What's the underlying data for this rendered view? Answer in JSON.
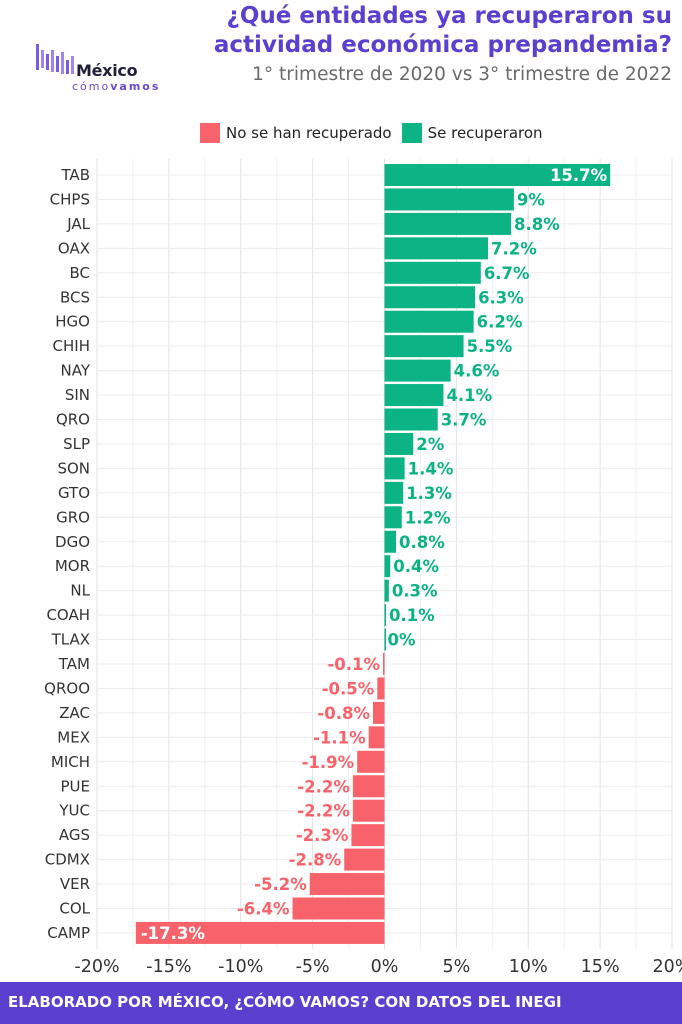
{
  "header": {
    "title_line1": "¿Qué entidades ya recuperaron su",
    "title_line2": "actividad económica prepandemia?",
    "subtitle": "1° trimestre de 2020 vs 3° trimestre de 2022"
  },
  "logo": {
    "name": "México",
    "tag_light": "cómo",
    "tag_bold": "vamos"
  },
  "legend": {
    "negative": {
      "label": "No se han recuperado",
      "color": "#f8636b"
    },
    "positive": {
      "label": "Se recuperaron",
      "color": "#0bb385"
    }
  },
  "footer": {
    "text": "ELABORADO POR MÉXICO, ¿CÓMO VAMOS? CON DATOS DEL INEGI"
  },
  "chart_data": {
    "type": "bar",
    "orientation": "horizontal",
    "title": "¿Qué entidades ya recuperaron su actividad económica prepandemia?",
    "subtitle": "1° trimestre de 2020 vs 3° trimestre de 2022",
    "categories": [
      "TAB",
      "CHPS",
      "JAL",
      "OAX",
      "BC",
      "BCS",
      "HGO",
      "CHIH",
      "NAY",
      "SIN",
      "QRO",
      "SLP",
      "SON",
      "GTO",
      "GRO",
      "DGO",
      "MOR",
      "NL",
      "COAH",
      "TLAX",
      "TAM",
      "QROO",
      "ZAC",
      "MEX",
      "MICH",
      "PUE",
      "YUC",
      "AGS",
      "CDMX",
      "VER",
      "COL",
      "CAMP"
    ],
    "values": [
      15.7,
      9,
      8.8,
      7.2,
      6.7,
      6.3,
      6.2,
      5.5,
      4.6,
      4.1,
      3.7,
      2,
      1.4,
      1.3,
      1.2,
      0.8,
      0.4,
      0.3,
      0.1,
      0,
      -0.1,
      -0.5,
      -0.8,
      -1.1,
      -1.9,
      -2.2,
      -2.2,
      -2.3,
      -2.8,
      -5.2,
      -6.4,
      -17.3
    ],
    "labels": [
      "15.7%",
      "9%",
      "8.8%",
      "7.2%",
      "6.7%",
      "6.3%",
      "6.2%",
      "5.5%",
      "4.6%",
      "4.1%",
      "3.7%",
      "2%",
      "1.4%",
      "1.3%",
      "1.2%",
      "0.8%",
      "0.4%",
      "0.3%",
      "0.1%",
      "0%",
      "-0.1%",
      "-0.5%",
      "-0.8%",
      "-1.1%",
      "-1.9%",
      "-2.2%",
      "-2.2%",
      "-2.3%",
      "-2.8%",
      "-5.2%",
      "-6.4%",
      "-17.3%"
    ],
    "xlim": [
      -20,
      20
    ],
    "xticks": [
      -20,
      -15,
      -10,
      -5,
      0,
      5,
      10,
      15,
      20
    ],
    "xtick_labels": [
      "-20%",
      "-15%",
      "-10%",
      "-5%",
      "0%",
      "5%",
      "10%",
      "15%",
      "20%"
    ],
    "grid": true,
    "legend_position": "top",
    "colors": {
      "positive": "#0bb385",
      "negative": "#f8636b"
    }
  }
}
